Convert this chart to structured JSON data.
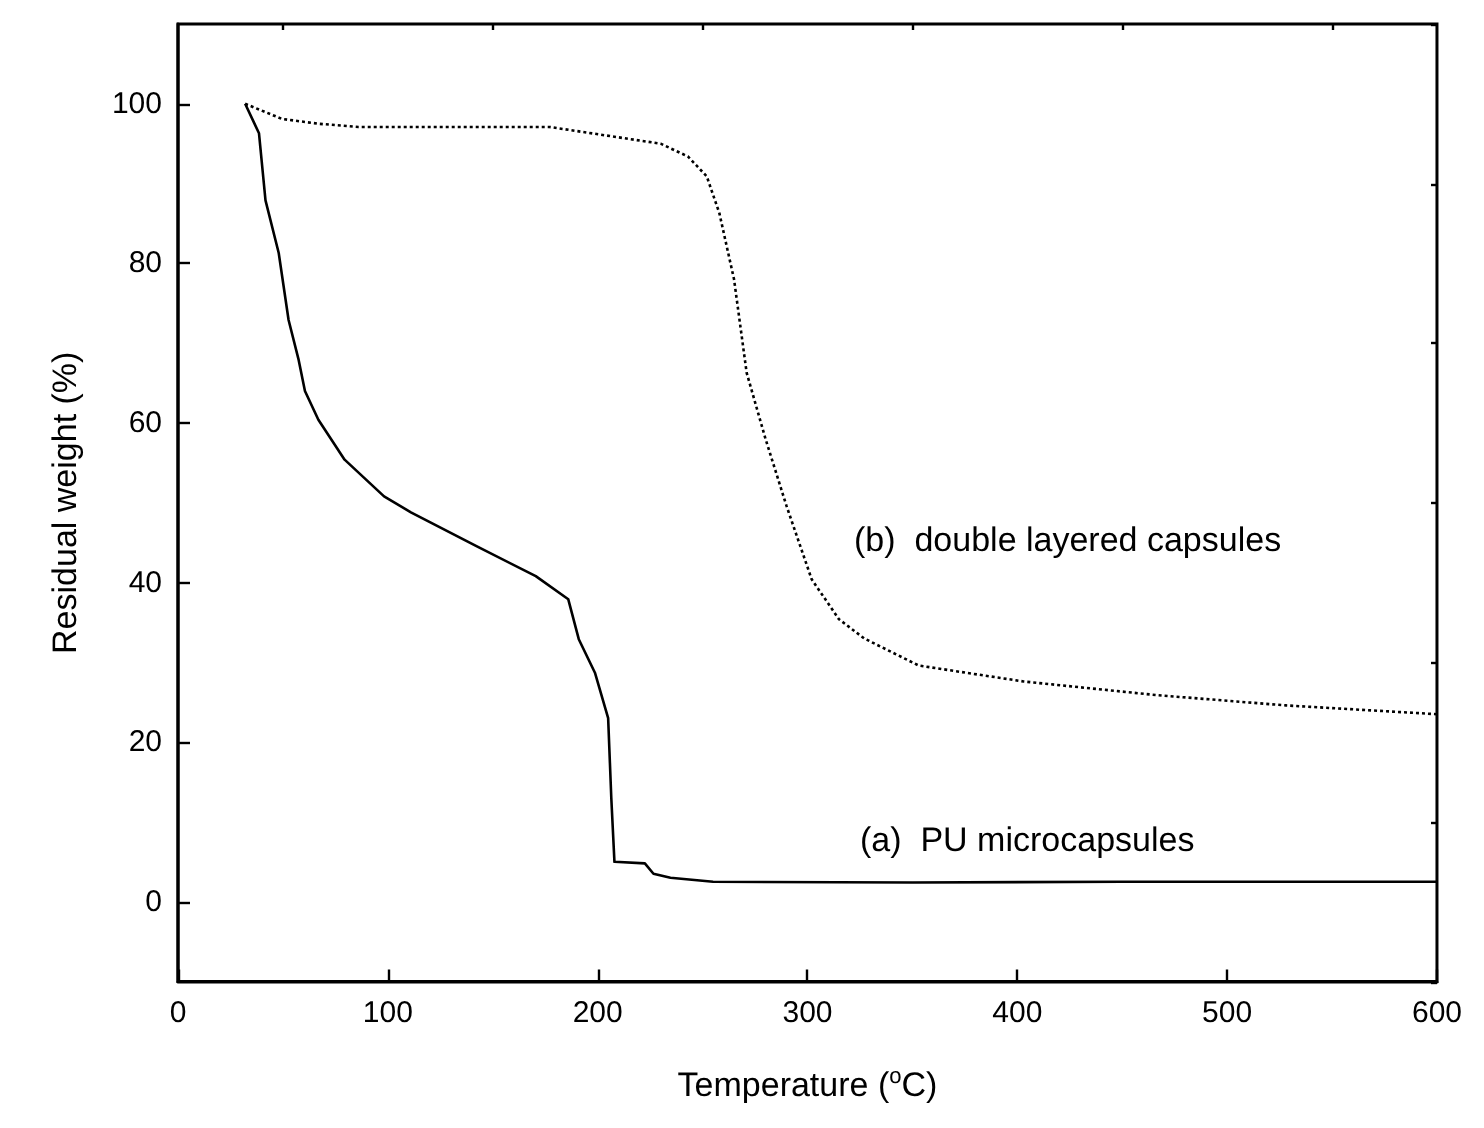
{
  "chart_data": {
    "type": "line",
    "xlabel": "Temperature ($^{o}$C)",
    "ylabel": "Residual weight (%)",
    "xlim": [
      0,
      600
    ],
    "ylim": [
      -10,
      110
    ],
    "xticks": [
      0,
      {
        "value": 50,
        "label": null
      },
      100,
      {
        "value": 150,
        "label": null
      },
      200,
      {
        "value": 250,
        "label": null
      },
      300,
      {
        "value": 350,
        "label": null
      },
      400,
      {
        "value": 450,
        "label": null
      },
      500,
      {
        "value": 550,
        "label": null
      },
      600
    ],
    "yticks": [
      {
        "value": -10,
        "label": null
      },
      0,
      {
        "value": 10,
        "label": null
      },
      20,
      {
        "value": 30,
        "label": null
      },
      40,
      {
        "value": 50,
        "label": null
      },
      60,
      {
        "value": 70,
        "label": null
      },
      80,
      {
        "value": 90,
        "label": null
      },
      100,
      {
        "value": 110,
        "label": null
      }
    ],
    "grid": false,
    "marker": "none",
    "series": [
      {
        "color": "#000000",
        "line_style": "solid",
        "x": [
          32,
          38.6,
          41.7,
          48,
          52.7,
          57.5,
          60.5,
          66.9,
          79.4,
          98.2,
          111,
          142,
          170.5,
          186,
          191,
          198.7,
          205,
          206.5,
          208,
          222.5,
          226.6,
          234.7,
          255,
          350,
          450,
          600
        ],
        "values": [
          100,
          96.3,
          87.9,
          81.3,
          72.9,
          67.9,
          64,
          60.4,
          55.4,
          50.8,
          48.8,
          44.6,
          40.8,
          37.9,
          32.9,
          28.7,
          23,
          13,
          5,
          4.8,
          3.5,
          3,
          2.5,
          2.4,
          2.5,
          2.5
        ]
      },
      {
        "color": "#000000",
        "line_style": "dotted",
        "x": [
          32,
          49.6,
          67,
          86,
          177,
          230,
          243,
          252,
          258,
          265,
          271,
          280,
          290,
          302,
          315,
          327,
          353,
          403,
          466,
          528,
          600
        ],
        "values": [
          100,
          98.1,
          97.5,
          97.1,
          97.1,
          95,
          93.4,
          90.9,
          86.3,
          78,
          66.3,
          58,
          49.6,
          40.4,
          35.4,
          33,
          29.6,
          27.6,
          25.9,
          24.6,
          23.5
        ]
      }
    ],
    "annotations": [
      "(a)  PU microcapsules",
      "(b)  double layered capsules"
    ]
  }
}
